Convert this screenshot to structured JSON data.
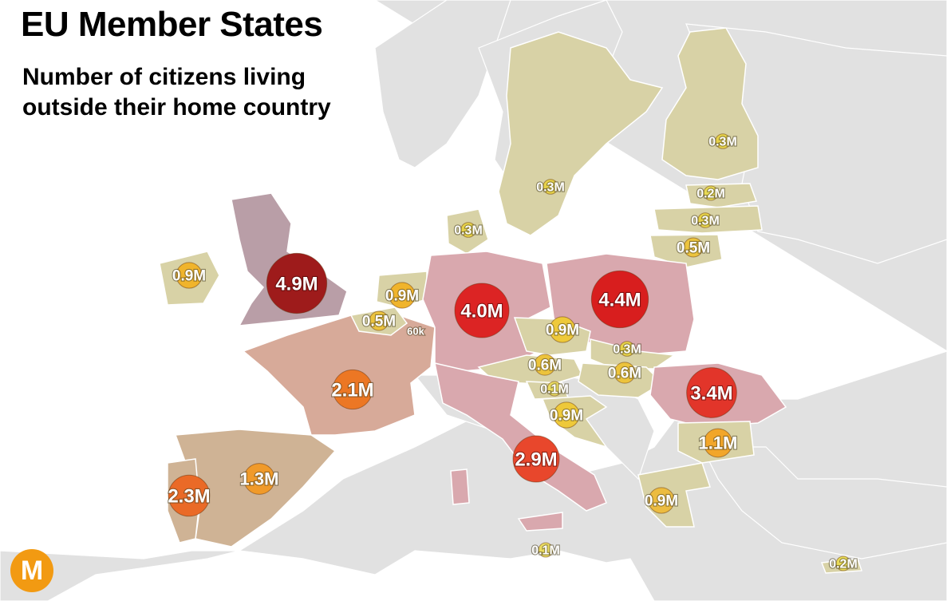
{
  "header": {
    "title": "EU Member States",
    "subtitle_line1": "Number of citizens living",
    "subtitle_line2": "outside their home country"
  },
  "logo": {
    "letter": "M",
    "color": "#f29a12"
  },
  "colors": {
    "sea": "#ffffff",
    "non_eu_land": "#e1e1e1",
    "low_region": "#d8d2a6",
    "high_region_pink": "#d9a8ae",
    "uk_region": "#b99ea7",
    "iberia_region": "#cfb395",
    "france_region": "#d7aa99"
  },
  "map_data": {
    "metric": "EU citizens living outside their home country",
    "values": [
      {
        "country": "United Kingdom",
        "label": "4.9M",
        "millions": 4.9,
        "color": "#9e1b1b"
      },
      {
        "country": "Poland",
        "label": "4.4M",
        "millions": 4.4,
        "color": "#d81e1e"
      },
      {
        "country": "Germany",
        "label": "4.0M",
        "millions": 4.0,
        "color": "#dc2424"
      },
      {
        "country": "Romania",
        "label": "3.4M",
        "millions": 3.4,
        "color": "#e2352a"
      },
      {
        "country": "Italy",
        "label": "2.9M",
        "millions": 2.9,
        "color": "#e8472c"
      },
      {
        "country": "Portugal",
        "label": "2.3M",
        "millions": 2.3,
        "color": "#ea6a27"
      },
      {
        "country": "France",
        "label": "2.1M",
        "millions": 2.1,
        "color": "#ec7724"
      },
      {
        "country": "Spain",
        "label": "1.3M",
        "millions": 1.3,
        "color": "#f09a2a"
      },
      {
        "country": "Bulgaria",
        "label": "1.1M",
        "millions": 1.1,
        "color": "#f2a62a"
      },
      {
        "country": "Ireland",
        "label": "0.9M",
        "millions": 0.9,
        "color": "#f0b42c"
      },
      {
        "country": "Netherlands",
        "label": "0.9M",
        "millions": 0.9,
        "color": "#f0b42c"
      },
      {
        "country": "Czech Republic",
        "label": "0.9M",
        "millions": 0.9,
        "color": "#eec93a"
      },
      {
        "country": "Croatia",
        "label": "0.9M",
        "millions": 0.9,
        "color": "#eec93a"
      },
      {
        "country": "Greece",
        "label": "0.9M",
        "millions": 0.9,
        "color": "#ecbc40"
      },
      {
        "country": "Austria",
        "label": "0.6M",
        "millions": 0.6,
        "color": "#ecc33c"
      },
      {
        "country": "Hungary",
        "label": "0.6M",
        "millions": 0.6,
        "color": "#ecc33c"
      },
      {
        "country": "Belgium",
        "label": "0.5M",
        "millions": 0.5,
        "color": "#ecc43e"
      },
      {
        "country": "Lithuania",
        "label": "0.5M",
        "millions": 0.5,
        "color": "#ecc43e"
      },
      {
        "country": "Finland",
        "label": "0.3M",
        "millions": 0.3,
        "color": "#e6d24a"
      },
      {
        "country": "Sweden",
        "label": "0.3M",
        "millions": 0.3,
        "color": "#e6d24a"
      },
      {
        "country": "Denmark",
        "label": "0.3M",
        "millions": 0.3,
        "color": "#e6d24a"
      },
      {
        "country": "Latvia",
        "label": "0.3M",
        "millions": 0.3,
        "color": "#e6d24a"
      },
      {
        "country": "Slovakia",
        "label": "0.3M",
        "millions": 0.3,
        "color": "#e6d24a"
      },
      {
        "country": "Estonia",
        "label": "0.2M",
        "millions": 0.2,
        "color": "#e8da56"
      },
      {
        "country": "Cyprus",
        "label": "0.2M",
        "millions": 0.2,
        "color": "#e8da56"
      },
      {
        "country": "Slovenia",
        "label": "0.1M",
        "millions": 0.1,
        "color": "#eadc62"
      },
      {
        "country": "Malta",
        "label": "0.1M",
        "millions": 0.1,
        "color": "#eadc62"
      },
      {
        "country": "Luxembourg",
        "label": "60k",
        "millions": 0.06,
        "color": ""
      }
    ]
  }
}
